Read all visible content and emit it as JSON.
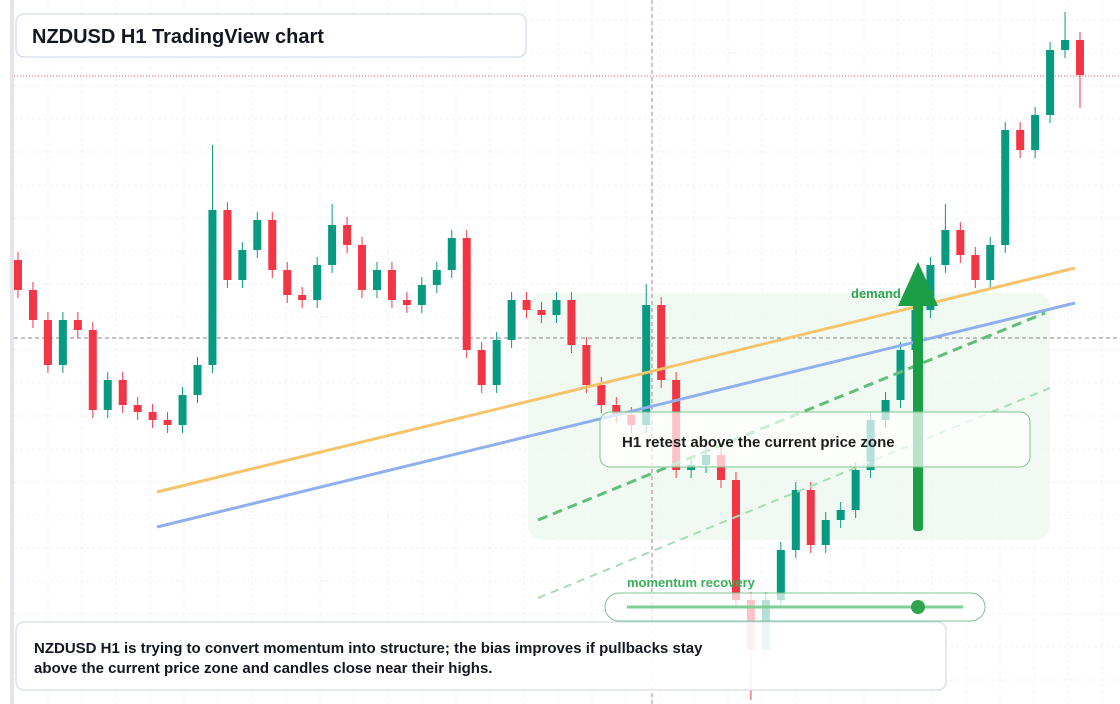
{
  "title": "NZDUSD H1 TradingView chart",
  "chart_data": {
    "type": "candlestick",
    "up_color": "#089981",
    "down_color": "#f23645",
    "ylim": [
      0,
      704
    ],
    "ohlc": [
      [
        444,
        452,
        406,
        414
      ],
      [
        414,
        422,
        376,
        384
      ],
      [
        384,
        392,
        331,
        339
      ],
      [
        339,
        392,
        331,
        384
      ],
      [
        384,
        392,
        366,
        374
      ],
      [
        374,
        382,
        286,
        294
      ],
      [
        294,
        332,
        286,
        324
      ],
      [
        324,
        332,
        291,
        299
      ],
      [
        299,
        307,
        284,
        292
      ],
      [
        292,
        300,
        276,
        284
      ],
      [
        284,
        292,
        271,
        279
      ],
      [
        279,
        317,
        271,
        309
      ],
      [
        309,
        347,
        301,
        339
      ],
      [
        339,
        559,
        331,
        494
      ],
      [
        494,
        502,
        416,
        424
      ],
      [
        424,
        462,
        416,
        454
      ],
      [
        454,
        492,
        446,
        484
      ],
      [
        484,
        492,
        426,
        434
      ],
      [
        434,
        442,
        401,
        409
      ],
      [
        409,
        417,
        396,
        404
      ],
      [
        404,
        447,
        396,
        439
      ],
      [
        439,
        500,
        431,
        479
      ],
      [
        479,
        487,
        451,
        459
      ],
      [
        459,
        467,
        406,
        414
      ],
      [
        414,
        442,
        406,
        434
      ],
      [
        434,
        442,
        396,
        404
      ],
      [
        404,
        412,
        391,
        399
      ],
      [
        399,
        427,
        391,
        419
      ],
      [
        419,
        442,
        411,
        434
      ],
      [
        434,
        474,
        426,
        466
      ],
      [
        466,
        474,
        346,
        354
      ],
      [
        354,
        362,
        311,
        319
      ],
      [
        319,
        372,
        311,
        364
      ],
      [
        364,
        412,
        356,
        404
      ],
      [
        404,
        412,
        386,
        394
      ],
      [
        394,
        402,
        381,
        389
      ],
      [
        389,
        412,
        381,
        404
      ],
      [
        404,
        412,
        351,
        359
      ],
      [
        359,
        367,
        311,
        319
      ],
      [
        319,
        327,
        291,
        299
      ],
      [
        299,
        307,
        281,
        289
      ],
      [
        289,
        297,
        271,
        279
      ],
      [
        279,
        420,
        271,
        399
      ],
      [
        399,
        407,
        316,
        324
      ],
      [
        324,
        332,
        226,
        234
      ],
      [
        234,
        247,
        226,
        239
      ],
      [
        239,
        257,
        231,
        249
      ],
      [
        249,
        257,
        216,
        224
      ],
      [
        224,
        232,
        96,
        104
      ],
      [
        104,
        112,
        4,
        54
      ],
      [
        54,
        112,
        46,
        104
      ],
      [
        104,
        162,
        96,
        154
      ],
      [
        154,
        222,
        146,
        214
      ],
      [
        214,
        222,
        151,
        159
      ],
      [
        159,
        192,
        151,
        184
      ],
      [
        184,
        202,
        176,
        194
      ],
      [
        194,
        242,
        186,
        234
      ],
      [
        234,
        292,
        226,
        284
      ],
      [
        284,
        312,
        276,
        304
      ],
      [
        304,
        362,
        296,
        354
      ],
      [
        354,
        402,
        346,
        394
      ],
      [
        394,
        447,
        386,
        439
      ],
      [
        439,
        500,
        431,
        474
      ],
      [
        474,
        482,
        441,
        449
      ],
      [
        449,
        457,
        416,
        424
      ],
      [
        424,
        467,
        416,
        459
      ],
      [
        459,
        582,
        451,
        574
      ],
      [
        574,
        582,
        546,
        554
      ],
      [
        554,
        597,
        546,
        589
      ],
      [
        589,
        662,
        581,
        654
      ],
      [
        654,
        692,
        646,
        664
      ],
      [
        664,
        672,
        596,
        629
      ]
    ]
  },
  "annotations": {
    "zone_label": "demand zone",
    "retest": "H1 retest above the current price zone",
    "momentum": "momentum recovery"
  },
  "caption": [
    "NZDUSD H1 is trying to convert momentum into structure; the bias improves if pullbacks stay",
    "above the current price zone and candles close near their highs."
  ]
}
